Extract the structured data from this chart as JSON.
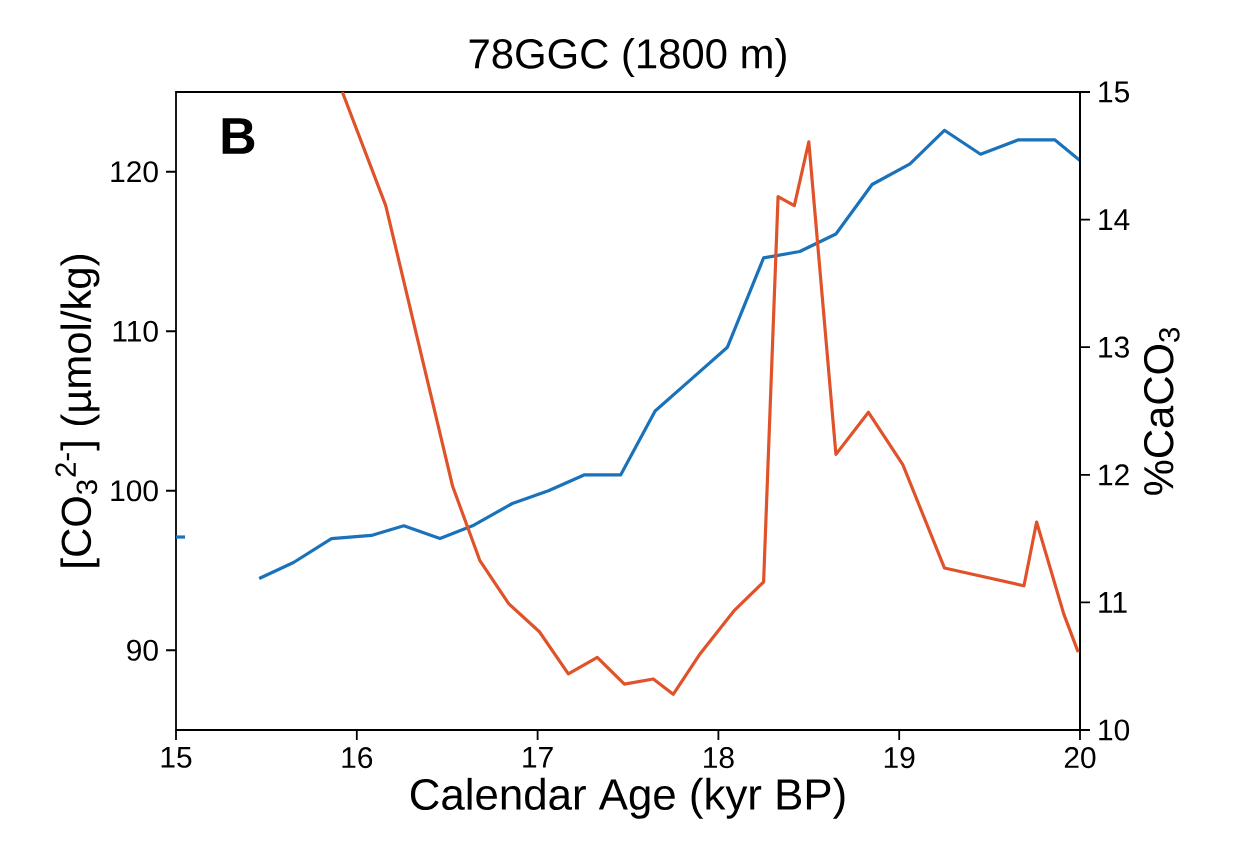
{
  "chart_data": {
    "type": "line",
    "title": "78GGC (1800 m)",
    "xlabel": "Calendar Age (kyr BP)",
    "ylabel": "[CO$_{3}$$^{2-}$] (µmol/kg)",
    "y2label": "%CaCO$_{3}$",
    "annotations": [
      "B"
    ],
    "xlim": [
      15,
      20
    ],
    "xticks": [
      15,
      16,
      17,
      18,
      19,
      20
    ],
    "ylim": [
      85,
      125
    ],
    "yticks": [
      90,
      100,
      110,
      120
    ],
    "y2lim": [
      10,
      15
    ],
    "y2ticks": [
      10,
      11,
      12,
      13,
      14,
      15
    ],
    "series": [
      {
        "color": "#1a72bb",
        "x": [
          15.0,
          15.05
        ],
        "values": [
          97.1,
          97.1
        ]
      },
      {
        "color": "#1a72bb",
        "x": [
          15.46,
          15.65,
          15.86,
          16.08,
          16.26,
          16.46,
          16.64,
          16.86,
          17.06,
          17.26,
          17.46,
          17.65,
          17.85,
          18.05,
          18.25,
          18.45,
          18.65,
          18.85,
          19.06,
          19.25,
          19.45,
          19.66,
          19.86,
          20.0
        ],
        "values": [
          94.5,
          95.5,
          97.0,
          97.2,
          97.8,
          97.0,
          97.8,
          99.2,
          100,
          101,
          101,
          105,
          107,
          109,
          114.6,
          115,
          116.1,
          119.2,
          120.5,
          122.6,
          121.1,
          122,
          122,
          120.7
        ]
      },
      {
        "color": "#e0522a",
        "axis": "y2",
        "x": [
          15.92,
          16.16,
          16.53,
          16.68,
          16.84,
          17.01,
          17.17,
          17.33,
          17.48,
          17.64,
          17.75,
          17.9,
          18.09,
          18.25,
          18.33,
          18.42,
          18.5,
          18.65,
          18.83,
          19.02,
          19.25,
          19.69,
          19.76,
          19.91,
          19.99
        ],
        "values": [
          15.0,
          14.11,
          11.91,
          11.33,
          10.99,
          10.77,
          10.44,
          10.57,
          10.36,
          10.4,
          10.28,
          10.6,
          10.94,
          11.16,
          14.18,
          14.11,
          14.61,
          12.16,
          12.49,
          12.08,
          11.27,
          11.13,
          11.63,
          10.91,
          10.61
        ]
      }
    ]
  }
}
